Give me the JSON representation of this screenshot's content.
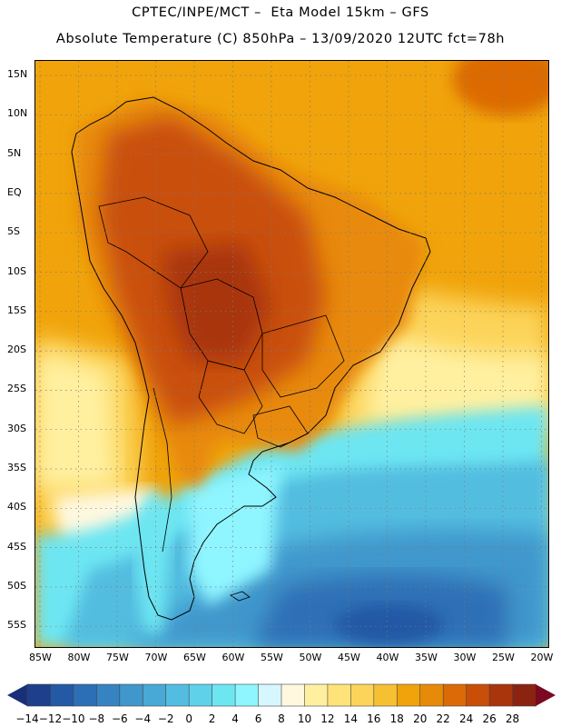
{
  "header": {
    "line1": "CPTEC/INPE/MCT –  Eta Model 15km – GFS",
    "line2": "Absolute Temperature (C) 850hPa – 13/09/2020 12UTC fct=78h"
  },
  "map": {
    "lat_labels": [
      "15N",
      "10N",
      "5N",
      "EQ",
      "5S",
      "10S",
      "15S",
      "20S",
      "25S",
      "30S",
      "35S",
      "40S",
      "45S",
      "50S",
      "55S"
    ],
    "lon_labels": [
      "85W",
      "80W",
      "75W",
      "70W",
      "65W",
      "60W",
      "55W",
      "50W",
      "45W",
      "40W",
      "35W",
      "30W",
      "25W",
      "20W"
    ],
    "grid": "dotted",
    "field_description_colors": {
      "warm_core": "#b54a12",
      "ocean_warm": "#f0a30a",
      "cold_core": "#1e4f9a"
    }
  },
  "colorbar": {
    "labels": [
      "-14",
      "-12",
      "-10",
      "-8",
      "-6",
      "-4",
      "-2",
      "0",
      "2",
      "4",
      "6",
      "8",
      "10",
      "12",
      "14",
      "16",
      "18",
      "20",
      "22",
      "24",
      "26",
      "28"
    ],
    "colors": [
      "#1d3f8c",
      "#2459a5",
      "#2d6fb6",
      "#3683c2",
      "#3f97cc",
      "#48a9d6",
      "#52bde0",
      "#5fd2ea",
      "#6de6f2",
      "#8ff5ff",
      "#d6f7ff",
      "#fff8df",
      "#fff0a0",
      "#ffe37a",
      "#fcd45a",
      "#f6c033",
      "#f0a30a",
      "#e88a09",
      "#dc6a06",
      "#c94f08",
      "#a9350d",
      "#8a2410"
    ],
    "min_color": "#1a2f7a",
    "max_color": "#7a0a22"
  }
}
